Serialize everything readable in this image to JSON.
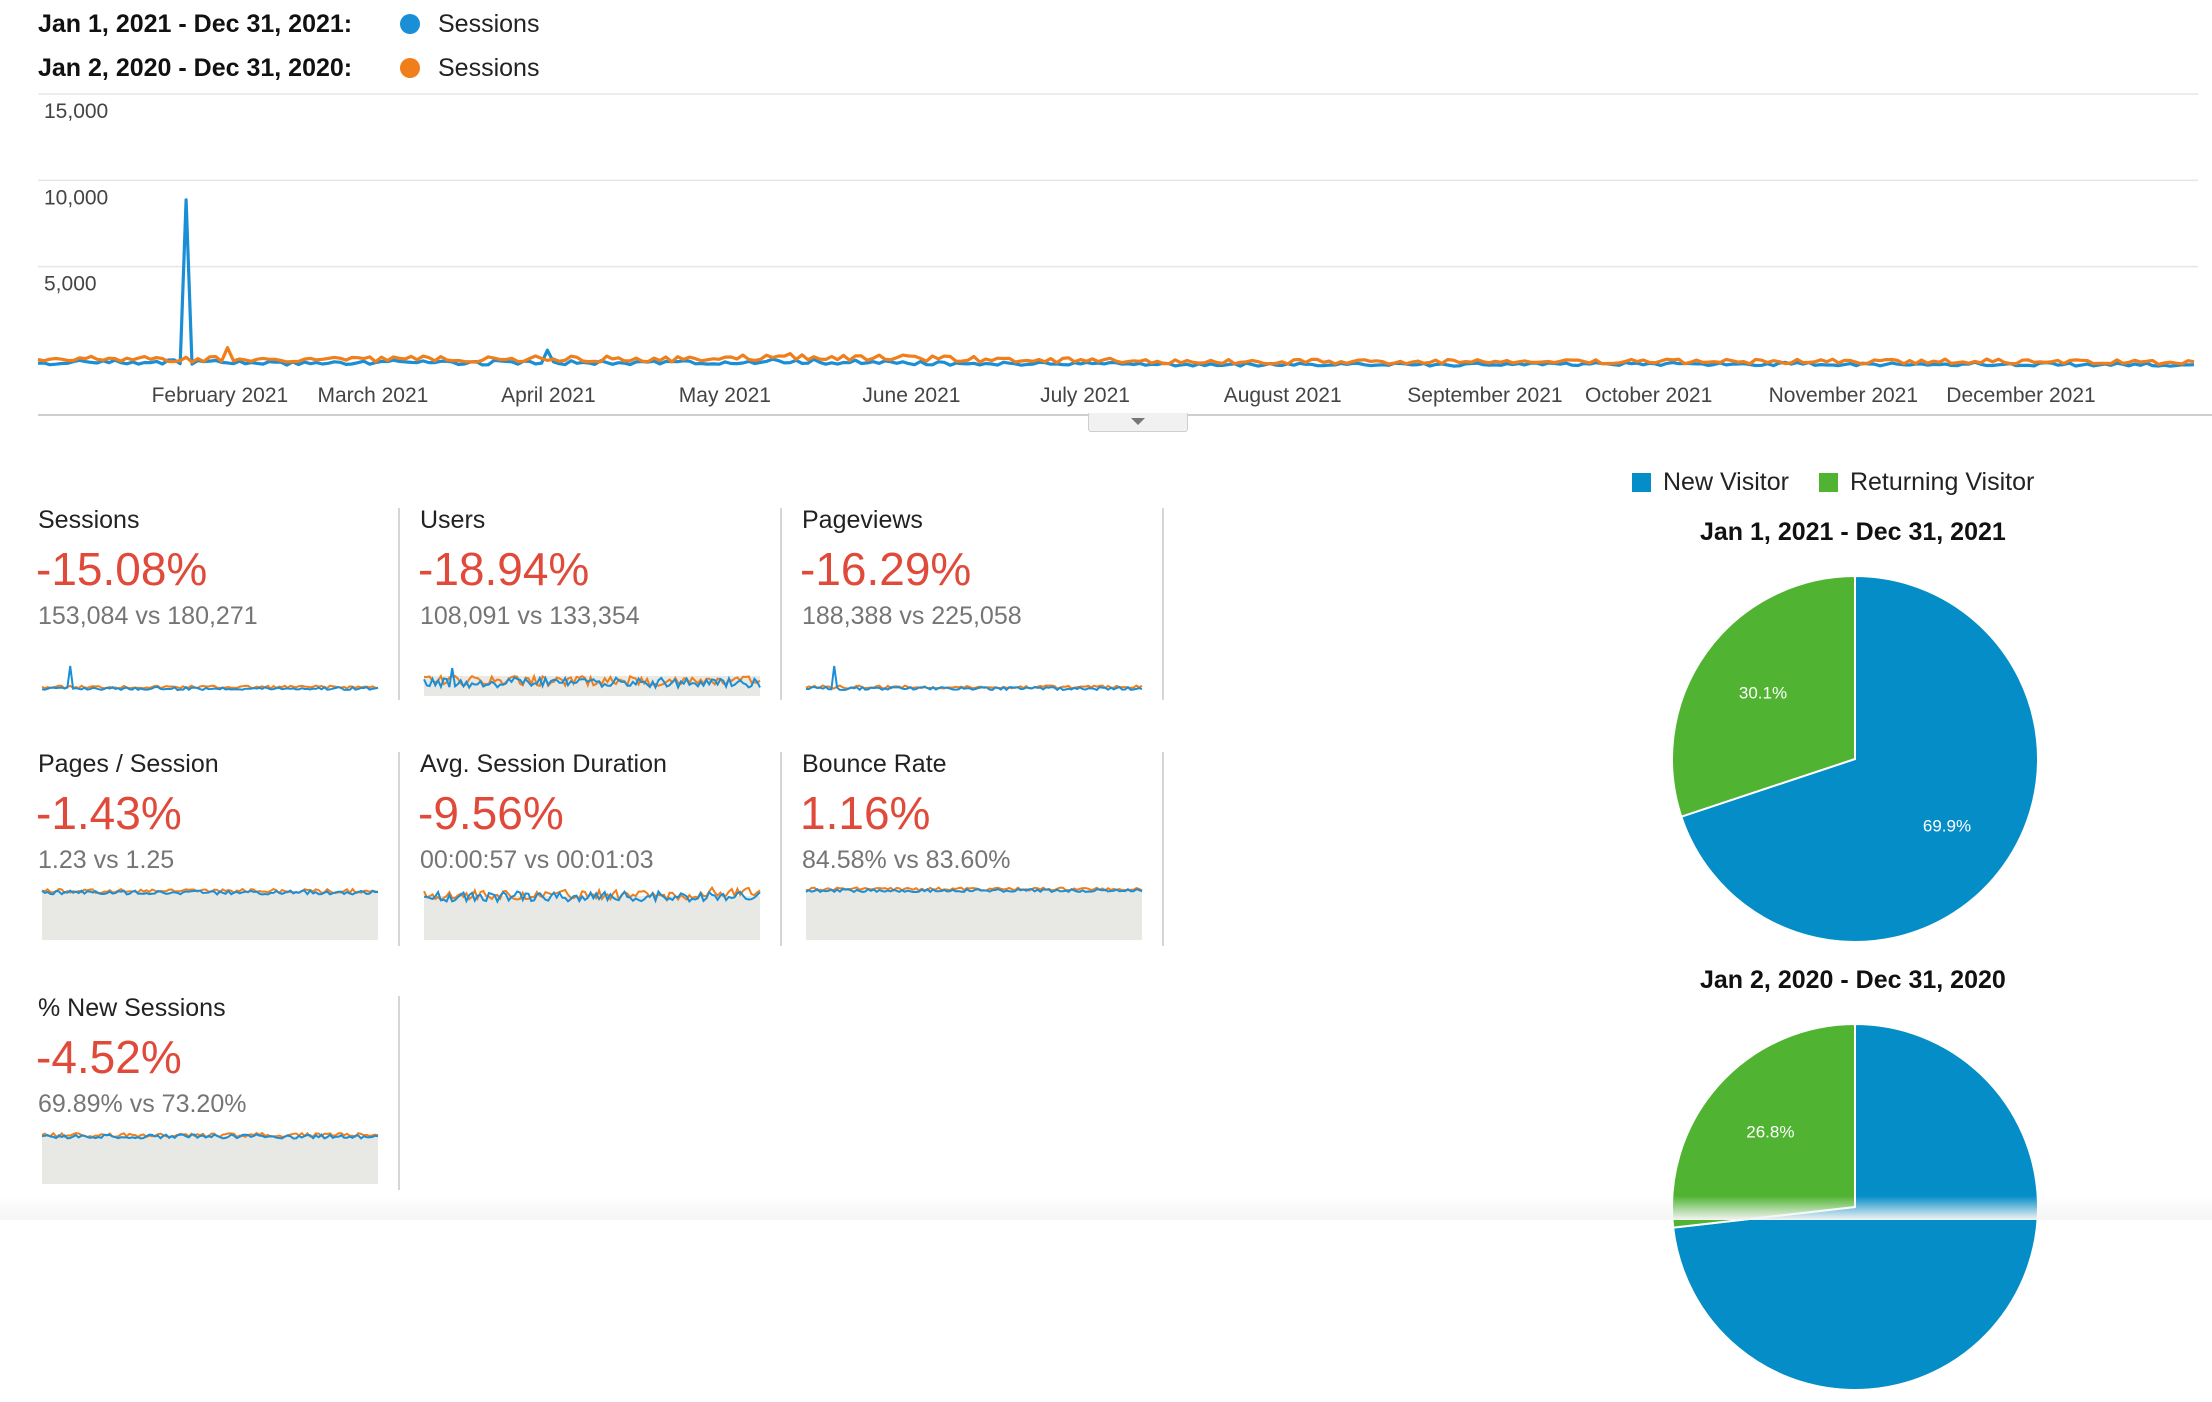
{
  "legend": {
    "current_range": "Jan 1, 2021 - Dec 31, 2021:",
    "current_label": "Sessions",
    "previous_range": "Jan 2, 2020 - Dec 31, 2020:",
    "previous_label": "Sessions"
  },
  "colors": {
    "current": "#1a8fd6",
    "previous": "#f07e1a",
    "new_visitor": "#058dc7",
    "returning_visitor": "#50b432",
    "negative": "#e04a3a",
    "spark_fill": "#e8e8e5"
  },
  "chart_data": {
    "type": "line",
    "title": "",
    "xlabel": "",
    "ylabel": "",
    "ylim": [
      0,
      15000
    ],
    "y_ticks": [
      "15,000",
      "10,000",
      "5,000"
    ],
    "x_tick_labels": [
      "February 2021",
      "March 2021",
      "April 2021",
      "May 2021",
      "June 2021",
      "July 2021",
      "August 2021",
      "September 2021",
      "October 2021",
      "November 2021",
      "December 2021"
    ],
    "x_range": [
      "2021-01-01",
      "2021-12-31"
    ],
    "series": [
      {
        "name": "Sessions",
        "period": "Jan 1, 2021 - Dec 31, 2021",
        "baseline": 420,
        "values_weekly_approx": [
          450,
          520,
          480,
          10200,
          560,
          480,
          430,
          470,
          510,
          500,
          460,
          520,
          1100,
          480,
          460,
          500,
          520,
          560,
          540,
          500,
          480,
          460,
          440,
          420,
          410,
          400,
          390,
          380,
          380,
          370,
          370,
          370,
          360,
          360,
          370,
          380,
          380,
          390,
          400,
          400,
          400,
          400,
          410,
          400,
          390,
          400,
          410,
          400,
          390,
          380,
          370,
          360
        ]
      },
      {
        "name": "Sessions",
        "period": "Jan 2, 2020 - Dec 31, 2020",
        "baseline": 560,
        "values_weekly_approx": [
          600,
          720,
          680,
          650,
          1300,
          700,
          640,
          660,
          690,
          700,
          660,
          680,
          700,
          690,
          680,
          700,
          720,
          760,
          820,
          780,
          740,
          700,
          680,
          640,
          620,
          600,
          580,
          560,
          560,
          540,
          540,
          540,
          520,
          520,
          540,
          540,
          540,
          560,
          560,
          560,
          560,
          560,
          560,
          560,
          540,
          560,
          580,
          560,
          540,
          520,
          520,
          500
        ]
      }
    ]
  },
  "metrics": [
    {
      "name": "Sessions",
      "change": "-15.08%",
      "compare": "153,084 vs 180,271"
    },
    {
      "name": "Users",
      "change": "-18.94%",
      "compare": "108,091 vs 133,354"
    },
    {
      "name": "Pageviews",
      "change": "-16.29%",
      "compare": "188,388 vs 225,058"
    },
    {
      "name": "Pages / Session",
      "change": "-1.43%",
      "compare": "1.23 vs 1.25"
    },
    {
      "name": "Avg. Session Duration",
      "change": "-9.56%",
      "compare": "00:00:57 vs 00:01:03"
    },
    {
      "name": "Bounce Rate",
      "change": "1.16%",
      "compare": "84.58% vs 83.60%"
    },
    {
      "name": "% New Sessions",
      "change": "-4.52%",
      "compare": "69.89% vs 73.20%"
    }
  ],
  "pie": {
    "legend_new": "New Visitor",
    "legend_returning": "Returning Visitor",
    "charts": [
      {
        "title": "Jan 1, 2021 - Dec 31, 2021",
        "new_pct": 69.9,
        "returning_pct": 30.1,
        "new_label": "69.9%",
        "returning_label": "30.1%"
      },
      {
        "title": "Jan 2, 2020 - Dec 31, 2020",
        "new_pct": 73.2,
        "returning_pct": 26.8,
        "new_label": "",
        "returning_label": "26.8%"
      }
    ]
  }
}
